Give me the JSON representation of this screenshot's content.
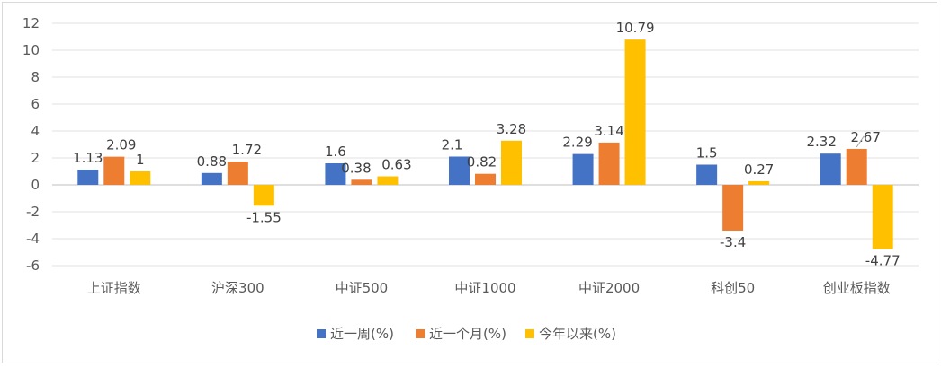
{
  "chart_data": {
    "type": "bar",
    "title": "",
    "xlabel": "",
    "ylabel": "",
    "ylim": [
      -6,
      12
    ],
    "yticks": [
      -6,
      -4,
      -2,
      0,
      2,
      4,
      6,
      8,
      10,
      12
    ],
    "grid": true,
    "legend_position": "bottom",
    "categories": [
      "上证指数",
      "沪深300",
      "中证500",
      "中证1000",
      "中证2000",
      "科创50",
      "创业板指数"
    ],
    "series": [
      {
        "name": "近一周(%)",
        "color": "#4472C4",
        "values": [
          1.13,
          0.88,
          1.6,
          2.1,
          2.29,
          1.5,
          2.32
        ]
      },
      {
        "name": "近一个月(%)",
        "color": "#ED7D31",
        "values": [
          2.09,
          1.72,
          0.38,
          0.82,
          3.14,
          -3.4,
          2.67
        ]
      },
      {
        "name": "今年以来(%)",
        "color": "#FFC000",
        "values": [
          1,
          -1.55,
          0.63,
          3.28,
          10.79,
          0.27,
          -4.77
        ]
      }
    ]
  }
}
